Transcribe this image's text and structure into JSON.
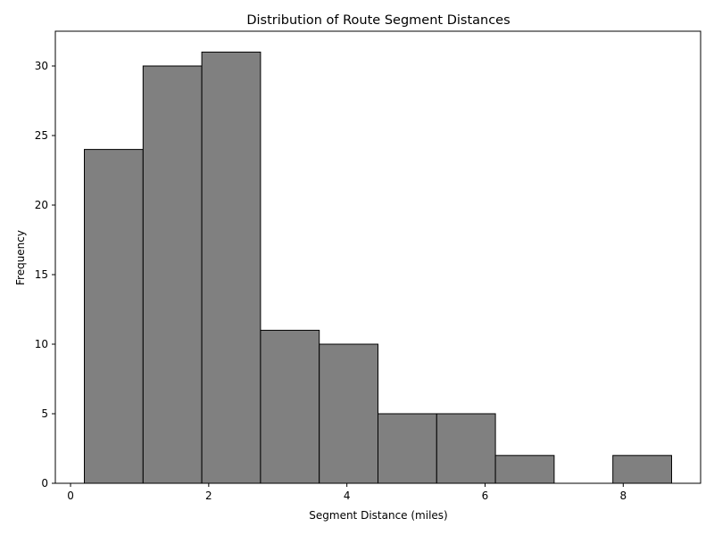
{
  "chart_data": {
    "type": "bar",
    "title": "Distribution of Route Segment Distances",
    "xlabel": "Segment Distance (miles)",
    "ylabel": "Frequency",
    "bins": [
      {
        "start": 0.2,
        "end": 1.05,
        "value": 24
      },
      {
        "start": 1.05,
        "end": 1.9,
        "value": 30
      },
      {
        "start": 1.9,
        "end": 2.75,
        "value": 31
      },
      {
        "start": 2.75,
        "end": 3.6,
        "value": 11
      },
      {
        "start": 3.6,
        "end": 4.45,
        "value": 10
      },
      {
        "start": 4.45,
        "end": 5.3,
        "value": 5
      },
      {
        "start": 5.3,
        "end": 6.15,
        "value": 5
      },
      {
        "start": 6.15,
        "end": 7.0,
        "value": 2
      },
      {
        "start": 7.0,
        "end": 7.85,
        "value": 0
      },
      {
        "start": 7.85,
        "end": 8.7,
        "value": 2
      }
    ],
    "xlim": [
      -0.22,
      9.12
    ],
    "ylim": [
      0,
      32.5
    ],
    "xticks": [
      {
        "value": 0,
        "label": "0"
      },
      {
        "value": 2,
        "label": "2"
      },
      {
        "value": 4,
        "label": "4"
      },
      {
        "value": 6,
        "label": "6"
      },
      {
        "value": 8,
        "label": "8"
      }
    ],
    "yticks": [
      {
        "value": 0,
        "label": "0"
      },
      {
        "value": 5,
        "label": "5"
      },
      {
        "value": 10,
        "label": "10"
      },
      {
        "value": 15,
        "label": "15"
      },
      {
        "value": 20,
        "label": "20"
      },
      {
        "value": 25,
        "label": "25"
      },
      {
        "value": 30,
        "label": "30"
      }
    ],
    "bar_color": "#808080",
    "edge_color": "#000000",
    "grid": false,
    "legend": "none"
  }
}
